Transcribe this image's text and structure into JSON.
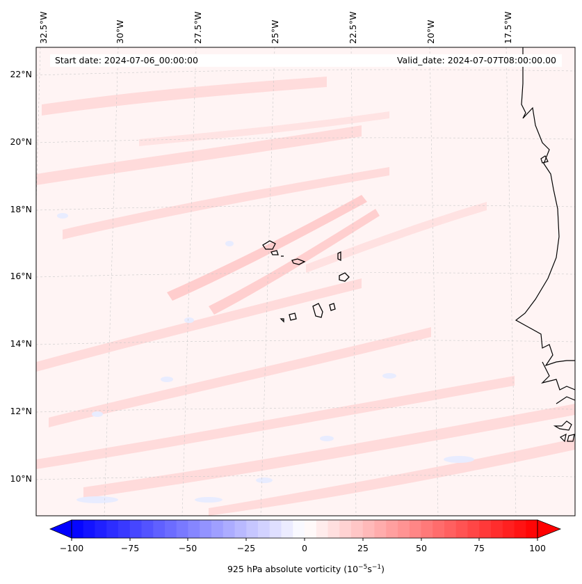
{
  "map": {
    "header": {
      "start_label": "Start date: 2024-07-06_00:00:00",
      "valid_label": "Valid_date: 2024-07-07T08:00:00.00"
    },
    "lat_labels": [
      "22°N",
      "20°N",
      "18°N",
      "16°N",
      "14°N",
      "12°N",
      "10°N"
    ],
    "lon_labels": [
      "32.5°W",
      "30°W",
      "27.5°W",
      "25°W",
      "22.5°W",
      "20°W",
      "17.5°W"
    ],
    "colorbar": {
      "ticks": [
        "−100",
        "−75",
        "−50",
        "−25",
        "0",
        "25",
        "50",
        "75",
        "100"
      ],
      "label_prefix": "925 hPa absolute vorticity (10",
      "label_exp1": "−5",
      "label_mid": "s",
      "label_exp2": "−1",
      "label_suffix": ")",
      "colors": {
        "negative": "#0000ff",
        "neutral": "#ffffff",
        "positive": "#ff0000"
      },
      "extend": "both"
    },
    "field_colors": {
      "background": "#fff4f4",
      "positive_band": "#ffd6d6",
      "negative_patch": "#e6ebff"
    },
    "coastline_color": "#000000",
    "gridline_style": "dashed-gray"
  }
}
